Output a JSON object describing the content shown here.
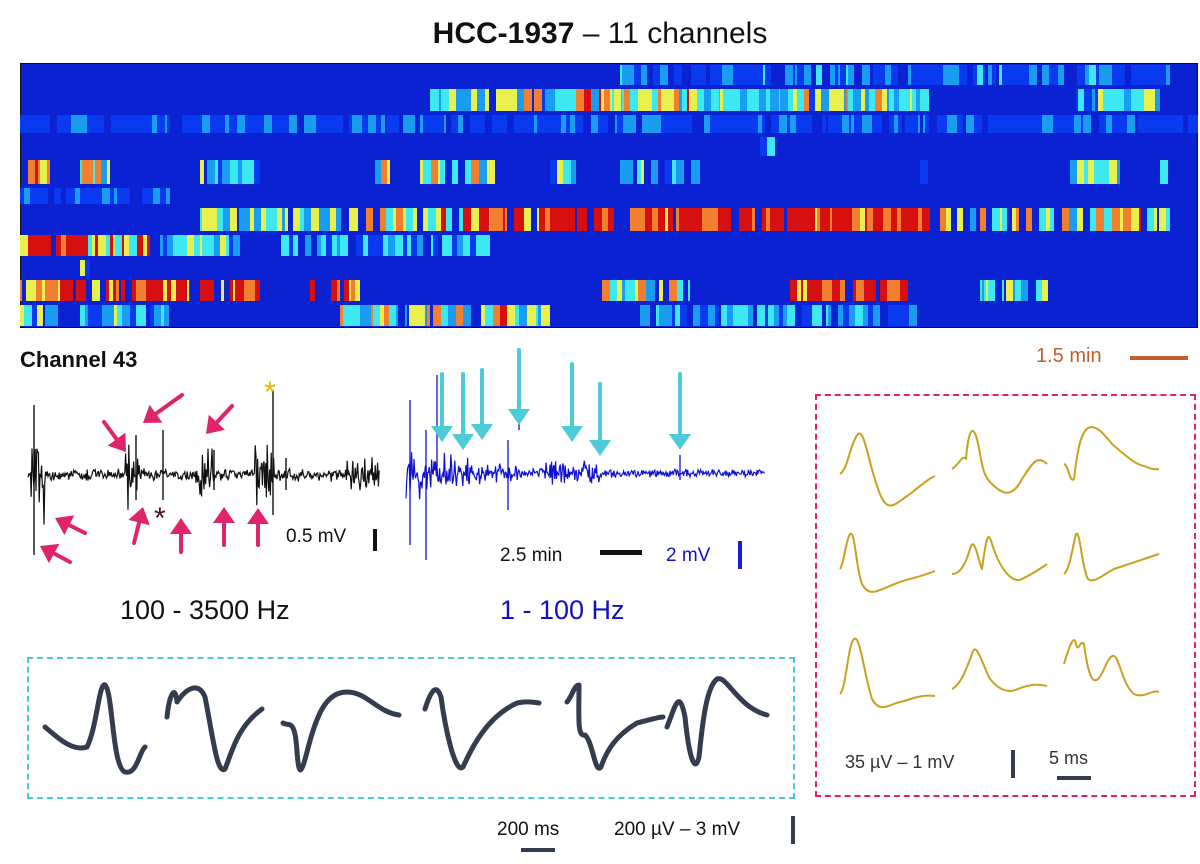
{
  "title": {
    "bold": "HCC-1937",
    "rest": " – 11 channels"
  },
  "heatmap": {
    "colors": {
      "background": "#0a22d2",
      "low": "#0a3af0",
      "mid_blue": "#1a9cf0",
      "cyan": "#3ee8f0",
      "yellow": "#e8f050",
      "orange": "#f08030",
      "red": "#d61010"
    },
    "rows": 11
  },
  "channel_label": "Channel 43",
  "heatmap_scale": {
    "label": "1.5 min",
    "color": "#c0602a"
  },
  "highpass": {
    "amp_scale": "0.5 mV",
    "band": "100 - 3500 Hz",
    "arrow_color": "#e0246a",
    "asterisk_dark": "*",
    "asterisk_gold": "*"
  },
  "lowpass": {
    "time_scale": "2.5 min",
    "amp_scale": "2 mV",
    "band": "1 - 100 Hz",
    "arrow_color": "#4cccd8",
    "trace_color": "#1010d0"
  },
  "slow_waveforms": {
    "count": 6,
    "time_scale": "200 ms",
    "amp_scale": "200 µV – 3 mV",
    "color": "#333d4d"
  },
  "fast_waveforms": {
    "count": 9,
    "amp_scale": "35 µV – 1 mV",
    "time_scale": "5 ms",
    "color": "#c9a020"
  },
  "box_colors": {
    "cyan": "#4cc9d3",
    "pink": "#e0245e"
  }
}
